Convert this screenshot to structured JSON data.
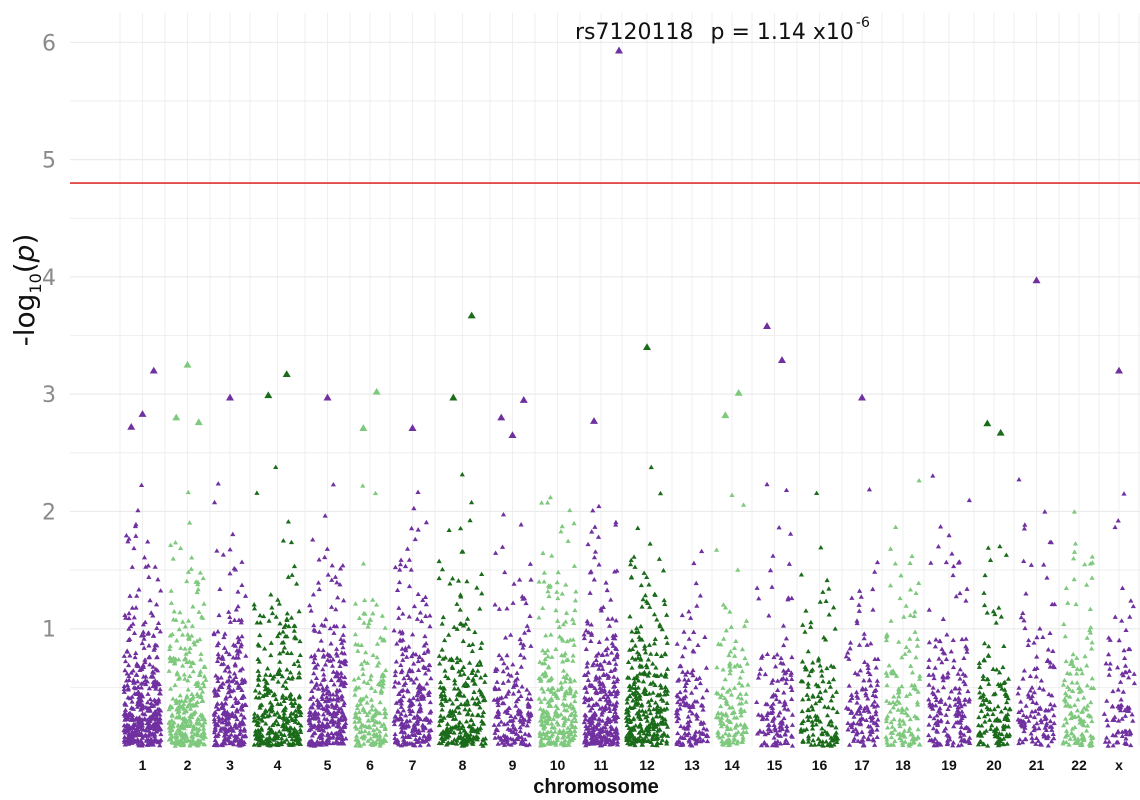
{
  "chart_data": {
    "type": "scatter",
    "xlabel": "chromosome",
    "ylabel": "-log10(p)",
    "ylabel_parts": {
      "prefix": "-log",
      "sub": "10",
      "open": "(",
      "var": "p",
      "close": ")"
    },
    "ylim": [
      0,
      6
    ],
    "yticks": [
      "1",
      "2",
      "3",
      "4",
      "5",
      "6"
    ],
    "grid": true,
    "threshold": 4.8,
    "colors": {
      "purple": "#7030a0",
      "lightgreen": "#7fc97f",
      "darkgreen": "#1a6b1a",
      "threshold": "#e03030",
      "grid": "#ebebeb"
    },
    "chromosomes": [
      {
        "label": "1",
        "color": "purple"
      },
      {
        "label": "2",
        "color": "lightgreen"
      },
      {
        "label": "3",
        "color": "purple"
      },
      {
        "label": "4",
        "color": "darkgreen"
      },
      {
        "label": "5",
        "color": "purple"
      },
      {
        "label": "6",
        "color": "lightgreen"
      },
      {
        "label": "7",
        "color": "purple"
      },
      {
        "label": "8",
        "color": "darkgreen"
      },
      {
        "label": "9",
        "color": "purple"
      },
      {
        "label": "10",
        "color": "lightgreen"
      },
      {
        "label": "11",
        "color": "purple"
      },
      {
        "label": "12",
        "color": "darkgreen"
      },
      {
        "label": "13",
        "color": "purple"
      },
      {
        "label": "14",
        "color": "lightgreen"
      },
      {
        "label": "15",
        "color": "purple"
      },
      {
        "label": "16",
        "color": "darkgreen"
      },
      {
        "label": "17",
        "color": "purple"
      },
      {
        "label": "18",
        "color": "lightgreen"
      },
      {
        "label": "19",
        "color": "purple"
      },
      {
        "label": "20",
        "color": "darkgreen"
      },
      {
        "label": "21",
        "color": "purple"
      },
      {
        "label": "22",
        "color": "lightgreen"
      },
      {
        "label": "x",
        "color": "purple"
      }
    ],
    "top_points": [
      {
        "chr": "1",
        "y": 2.72
      },
      {
        "chr": "1",
        "y": 2.83
      },
      {
        "chr": "1",
        "y": 3.2
      },
      {
        "chr": "2",
        "y": 2.8
      },
      {
        "chr": "2",
        "y": 3.25
      },
      {
        "chr": "2",
        "y": 2.76
      },
      {
        "chr": "3",
        "y": 2.97
      },
      {
        "chr": "4",
        "y": 2.99
      },
      {
        "chr": "4",
        "y": 3.17
      },
      {
        "chr": "5",
        "y": 2.97
      },
      {
        "chr": "6",
        "y": 2.71
      },
      {
        "chr": "6",
        "y": 3.02
      },
      {
        "chr": "7",
        "y": 2.71
      },
      {
        "chr": "8",
        "y": 2.97
      },
      {
        "chr": "8",
        "y": 3.67
      },
      {
        "chr": "9",
        "y": 2.8
      },
      {
        "chr": "9",
        "y": 2.65
      },
      {
        "chr": "9",
        "y": 2.95
      },
      {
        "chr": "11",
        "y": 2.77
      },
      {
        "chr": "11",
        "y": 5.93
      },
      {
        "chr": "12",
        "y": 3.4
      },
      {
        "chr": "14",
        "y": 2.82
      },
      {
        "chr": "14",
        "y": 3.01
      },
      {
        "chr": "15",
        "y": 3.58
      },
      {
        "chr": "15",
        "y": 3.29
      },
      {
        "chr": "17",
        "y": 2.97
      },
      {
        "chr": "20",
        "y": 2.75
      },
      {
        "chr": "20",
        "y": 2.67
      },
      {
        "chr": "21",
        "y": 3.97
      },
      {
        "chr": "x",
        "y": 3.2
      }
    ],
    "annotation": {
      "snp": "rs7120118",
      "p_text": "p = 1.14 x10",
      "p_exp": "-6",
      "chr": "11",
      "y": 5.93
    }
  }
}
